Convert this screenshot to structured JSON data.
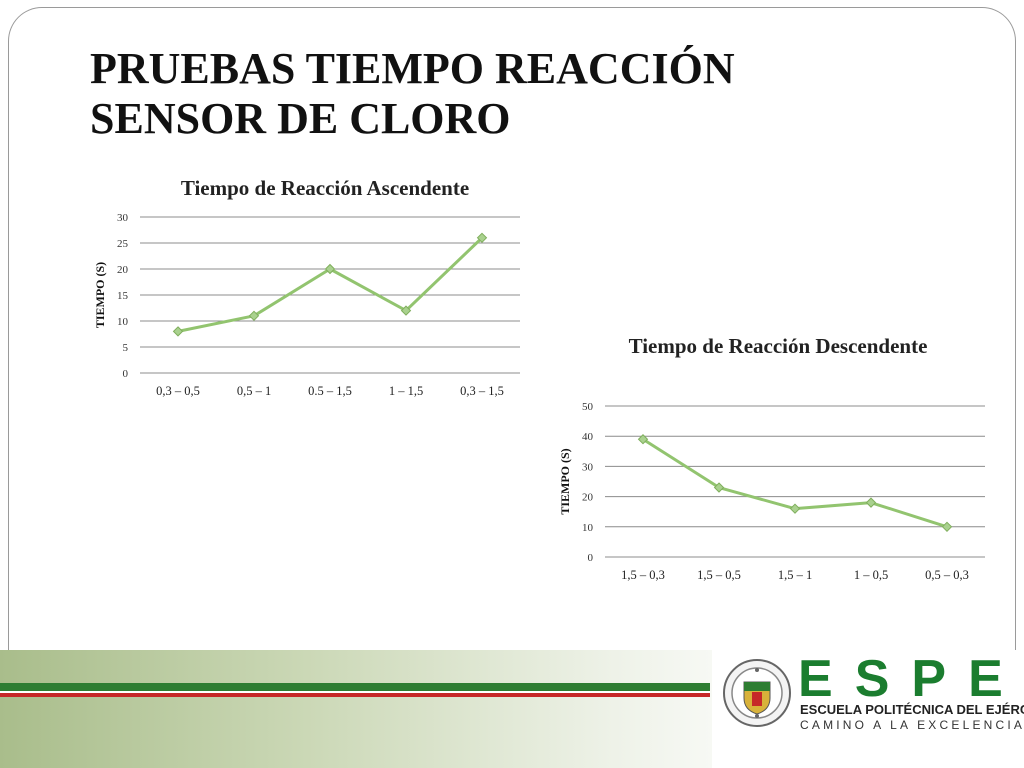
{
  "slide": {
    "title_line1": "PRUEBAS  TIEMPO REACCIÓN",
    "title_line2": "SENSOR DE CLORO"
  },
  "colors": {
    "line": "#92c46f",
    "marker_fill": "#a9d18e",
    "marker_stroke": "#7fae5c",
    "grid": "#8c8c8c",
    "espe_green": "#1b7d2f",
    "stripe_green": "#2e7d32",
    "stripe_red": "#c62828"
  },
  "logo": {
    "letters": [
      "E",
      "S",
      "P",
      "E"
    ],
    "name": "ESCUELA POLITÉCNICA DEL EJÉRCITO",
    "motto": "CAMINO A LA EXCELENCIA",
    "seal_icon": "espe-seal-icon"
  },
  "chart_data": [
    {
      "type": "line",
      "title": "Tiempo de Reacción Ascendente",
      "xlabel": "",
      "ylabel": "TIEMPO (S)",
      "categories": [
        "0,3 – 0,5",
        "0,5 – 1",
        "0.5 – 1,5",
        "1 – 1,5",
        "0,3 – 1,5"
      ],
      "series": [
        {
          "values": [
            8,
            11,
            20,
            12,
            26
          ]
        }
      ],
      "ylim": [
        0,
        30
      ],
      "yticks": [
        0,
        5,
        10,
        15,
        20,
        25,
        30
      ],
      "grid": true,
      "legend": "none"
    },
    {
      "type": "line",
      "title": "Tiempo de Reacción Descendente",
      "xlabel": "",
      "ylabel": "TIEMPO (S)",
      "categories": [
        "1,5 – 0,3",
        "1,5 – 0,5",
        "1,5 – 1",
        "1 – 0,5",
        "0,5 – 0,3"
      ],
      "series": [
        {
          "values": [
            39,
            23,
            16,
            18,
            10
          ]
        }
      ],
      "ylim": [
        0,
        50
      ],
      "yticks": [
        0,
        10,
        20,
        30,
        40,
        50
      ],
      "grid": true,
      "legend": "none"
    }
  ]
}
